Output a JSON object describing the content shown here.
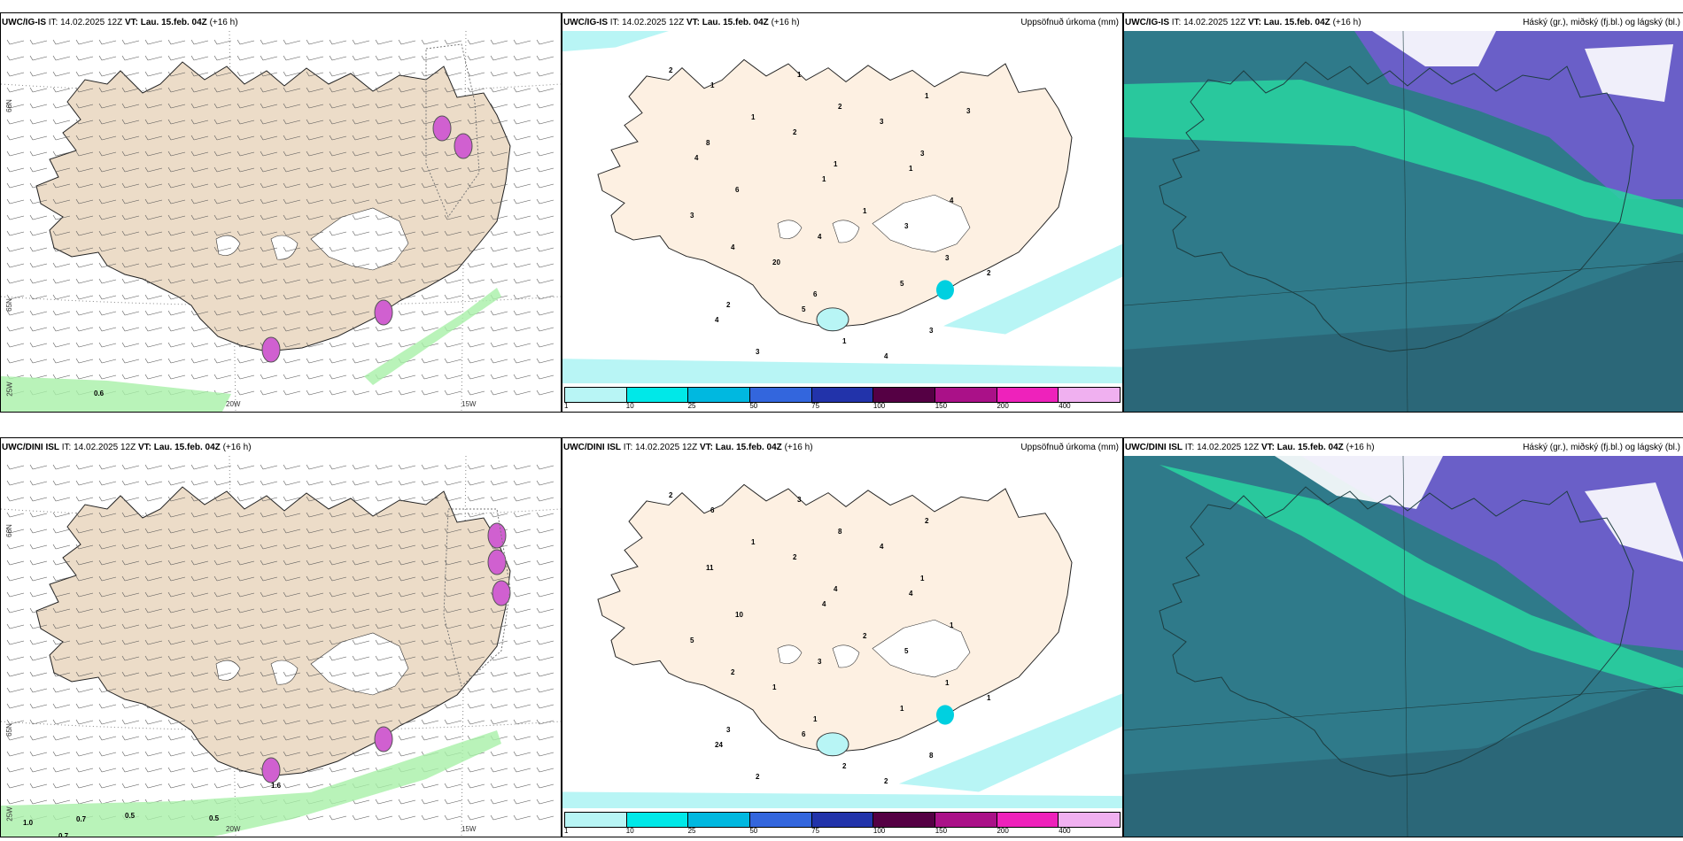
{
  "panels": [
    {
      "id": "r1c1",
      "model": "UWC/IG-IS",
      "it": "IT: 14.02.2025 12Z",
      "vt_label": "VT:",
      "vt": "Lau. 15.feb. 04Z",
      "lead": "(+16 h)",
      "right_title": "",
      "type": "wind",
      "lat_labels": [
        "66N",
        "65N",
        "25W"
      ],
      "lon_labels": [
        "20W",
        "15W"
      ],
      "values": [
        "0.6"
      ]
    },
    {
      "id": "r1c2",
      "model": "UWC/IG-IS",
      "it": "IT: 14.02.2025 12Z",
      "vt_label": "VT:",
      "vt": "Lau. 15.feb. 04Z",
      "lead": "(+16 h)",
      "right_title": "Uppsöfnuð úrkoma (mm)",
      "type": "precip",
      "values": [
        "2",
        "1",
        "1",
        "1",
        "3",
        "2",
        "3",
        "2",
        "3",
        "4",
        "4",
        "6",
        "1",
        "1",
        "8",
        "6",
        "4",
        "5",
        "3",
        "1",
        "2",
        "1",
        "3",
        "2",
        "4",
        "1",
        "3",
        "1",
        "3",
        "20",
        "5",
        "4",
        "3",
        "4"
      ]
    },
    {
      "id": "r1c3",
      "model": "UWC/IG-IS",
      "it": "IT: 14.02.2025 12Z",
      "vt_label": "VT:",
      "vt": "Lau. 15.feb. 04Z",
      "lead": "(+16 h)",
      "right_title": "Háský (gr.), miðský (fj.bl.) og lágský (bl.)",
      "type": "cloud"
    },
    {
      "id": "r2c1",
      "model": "UWC/DINI ISL",
      "it": "IT: 14.02.2025 12Z",
      "vt_label": "VT:",
      "vt": "Lau. 15.feb. 04Z",
      "lead": "(+16 h)",
      "right_title": "",
      "type": "wind",
      "lat_labels": [
        "66N",
        "65N",
        "25W"
      ],
      "lon_labels": [
        "20W",
        "15W"
      ],
      "values": [
        "1.0",
        "0.7",
        "0.7",
        "0.5",
        "0.5",
        "1.6"
      ]
    },
    {
      "id": "r2c2",
      "model": "UWC/DINI ISL",
      "it": "IT: 14.02.2025 12Z",
      "vt_label": "VT:",
      "vt": "Lau. 15.feb. 04Z",
      "lead": "(+16 h)",
      "right_title": "Uppsöfnuð úrkoma (mm)",
      "type": "precip",
      "values": [
        "2",
        "1",
        "4",
        "2",
        "1",
        "3",
        "2",
        "8",
        "1",
        "1",
        "2",
        "1",
        "2",
        "2",
        "11",
        "10",
        "3",
        "1",
        "8",
        "6",
        "2",
        "4",
        "5",
        "1",
        "24",
        "3",
        "4",
        "4",
        "5",
        "1",
        "6",
        "2"
      ]
    },
    {
      "id": "r2c3",
      "model": "UWC/DINI ISL",
      "it": "IT: 14.02.2025 12Z",
      "vt_label": "VT:",
      "vt": "Lau. 15.feb. 04Z",
      "lead": "(+16 h)",
      "right_title": "Háský (gr.), miðský (fj.bl.) og lágský (bl.)",
      "type": "cloud"
    }
  ],
  "colorbar": {
    "ticks": [
      "1",
      "10",
      "25",
      "50",
      "75",
      "100",
      "150",
      "200",
      "400"
    ],
    "colors": [
      "#b8f5f5",
      "#00e8e8",
      "#00b8e0",
      "#3366dd",
      "#2233aa",
      "#550044",
      "#aa1188",
      "#ee22bb",
      "#f0b0f0"
    ]
  },
  "colors": {
    "land_wind": "#ecdcc8",
    "land_precip": "#fdf0e2",
    "sea_cloud": "#2f7a8a",
    "high_cloud": "#28d6a0",
    "mid_cloud": "#6a5fc8",
    "low_cloud": "#2a6070"
  }
}
